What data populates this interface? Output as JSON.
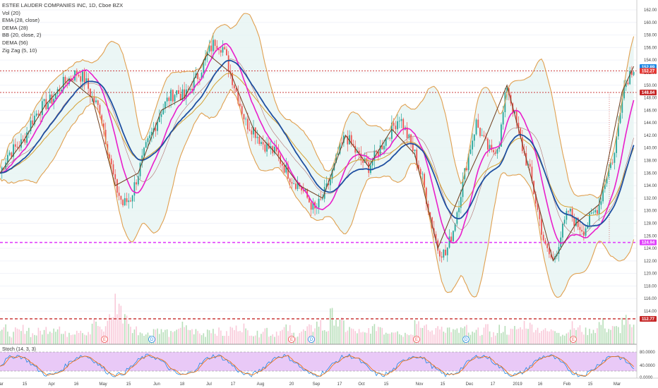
{
  "header": {
    "title": "ESTEE LAUDER COMPANIES INC, 1D, Cboe BZX",
    "indicators": [
      "Vol (20)",
      "EMA (28, close)",
      "DEMA (28)",
      "BB (20, close, 2)",
      "DEMA (56)",
      "Zig Zag (5, 10)"
    ],
    "stoch_label": "Stoch (14, 3, 3)"
  },
  "price_axis": {
    "ticks": [
      "162.00",
      "160.00",
      "158.00",
      "156.00",
      "154.00",
      "152.00",
      "150.00",
      "148.00",
      "146.00",
      "144.00",
      "142.00",
      "140.00",
      "138.00",
      "136.00",
      "134.00",
      "132.00",
      "130.00",
      "128.00",
      "126.00",
      "124.00",
      "122.00",
      "120.00",
      "118.00",
      "116.00",
      "114.00"
    ],
    "badges": [
      {
        "label": "152.89",
        "value": 152.89,
        "color": "#1e88e5"
      },
      {
        "label": "152.27",
        "value": 152.27,
        "color": "#e53935"
      },
      {
        "label": "148.84",
        "value": 148.84,
        "color": "#c62828"
      },
      {
        "label": "124.94",
        "value": 124.94,
        "color": "#e040fb"
      },
      {
        "label": "112.77",
        "value": 112.77,
        "color": "#c62828"
      }
    ]
  },
  "stoch_axis": {
    "ticks": [
      "80.0000",
      "40.0000",
      "0.0000"
    ]
  },
  "time_axis": {
    "labels": [
      "ar",
      "15",
      "Apr",
      "16",
      "May",
      "15",
      "Jun",
      "18",
      "Jul",
      "17",
      "Aug",
      "20",
      "Sep",
      "17",
      "Oct",
      "15",
      "Nov",
      "15",
      "Dec",
      "17",
      "2019",
      "16",
      "Feb",
      "15",
      "Mar"
    ]
  },
  "events": [
    "E",
    "D",
    "E",
    "D",
    "E",
    "D",
    "E"
  ],
  "chart_data": {
    "type": "candlestick",
    "title": "ESTEE LAUDER COMPANIES INC, 1D, Cboe BZX",
    "ylim": [
      112,
      163
    ],
    "horizontal_levels": [
      152.27,
      148.84,
      124.94,
      112.77
    ],
    "last_price": 152.89,
    "price_path": [
      [
        0,
        136
      ],
      [
        4,
        139
      ],
      [
        8,
        140
      ],
      [
        12,
        141
      ],
      [
        16,
        144
      ],
      [
        20,
        146
      ],
      [
        24,
        147
      ],
      [
        28,
        148
      ],
      [
        32,
        150
      ],
      [
        36,
        151
      ],
      [
        40,
        152
      ],
      [
        44,
        151
      ],
      [
        48,
        148
      ],
      [
        52,
        146
      ],
      [
        56,
        140
      ],
      [
        60,
        134
      ],
      [
        64,
        131
      ],
      [
        68,
        132
      ],
      [
        72,
        136
      ],
      [
        76,
        140
      ],
      [
        80,
        143
      ],
      [
        84,
        146
      ],
      [
        88,
        148
      ],
      [
        92,
        149
      ],
      [
        96,
        148
      ],
      [
        100,
        150
      ],
      [
        104,
        152
      ],
      [
        108,
        155
      ],
      [
        112,
        157
      ],
      [
        116,
        156
      ],
      [
        120,
        152
      ],
      [
        124,
        148
      ],
      [
        128,
        144
      ],
      [
        132,
        143
      ],
      [
        136,
        141
      ],
      [
        140,
        140
      ],
      [
        144,
        139
      ],
      [
        148,
        137
      ],
      [
        152,
        135
      ],
      [
        156,
        134
      ],
      [
        160,
        132
      ],
      [
        164,
        130
      ],
      [
        168,
        132
      ],
      [
        172,
        135
      ],
      [
        176,
        139
      ],
      [
        180,
        142
      ],
      [
        184,
        140
      ],
      [
        188,
        138
      ],
      [
        192,
        137
      ],
      [
        196,
        139
      ],
      [
        200,
        141
      ],
      [
        204,
        143
      ],
      [
        208,
        145
      ],
      [
        212,
        142
      ],
      [
        216,
        139
      ],
      [
        220,
        135
      ],
      [
        224,
        129
      ],
      [
        228,
        124
      ],
      [
        232,
        123
      ],
      [
        236,
        127
      ],
      [
        240,
        133
      ],
      [
        244,
        139
      ],
      [
        248,
        144
      ],
      [
        252,
        141
      ],
      [
        256,
        139
      ],
      [
        260,
        141
      ],
      [
        264,
        150
      ],
      [
        268,
        145
      ],
      [
        272,
        140
      ],
      [
        276,
        136
      ],
      [
        280,
        130
      ],
      [
        284,
        124
      ],
      [
        288,
        122
      ],
      [
        292,
        126
      ],
      [
        296,
        130
      ],
      [
        300,
        128
      ],
      [
        304,
        127
      ],
      [
        308,
        129
      ],
      [
        312,
        131
      ],
      [
        316,
        136
      ],
      [
        320,
        139
      ],
      [
        324,
        149
      ],
      [
        328,
        152
      ],
      [
        330,
        153
      ]
    ],
    "volume_relative": [
      0.3,
      0.2,
      0.25,
      0.3,
      0.2,
      0.25,
      0.3,
      0.35,
      0.2,
      0.25,
      0.3,
      0.2,
      0.4,
      0.3,
      0.55,
      0.8,
      0.5,
      0.3,
      0.25,
      0.2,
      0.3,
      0.25,
      0.2,
      0.35,
      0.3,
      0.25,
      0.2,
      0.3,
      0.25,
      0.2,
      0.3,
      0.35,
      0.25,
      0.2,
      0.3,
      0.2,
      0.25,
      0.3,
      0.2,
      0.25,
      0.3,
      0.4,
      0.3,
      0.55,
      0.4,
      0.3,
      0.25,
      0.2,
      0.3,
      0.35,
      0.25,
      0.3,
      0.2,
      0.25,
      0.45,
      0.3,
      0.25,
      0.35,
      0.3,
      0.25,
      0.3,
      0.2,
      0.25,
      0.3,
      0.2,
      0.3,
      0.25,
      0.3,
      0.4,
      0.35,
      0.3,
      0.25,
      0.3,
      0.2,
      0.35,
      0.3,
      0.25,
      0.3,
      0.4,
      0.3,
      0.3,
      0.45,
      0.3,
      0.35,
      0.3,
      0.95
    ]
  },
  "colors": {
    "up": "#26a69a",
    "down": "#ef5350",
    "bb": "#e0a050",
    "ema": "#d4a032",
    "dema28": "#e91ecb",
    "dema56": "#1e4fa0",
    "zigzag": "#6d3b1a",
    "stoch_k": "#1e88e5",
    "stoch_d": "#ef6c00",
    "stoch_band": "#e9c9f7",
    "level": "#c62828",
    "magenta": "#e040fb"
  }
}
